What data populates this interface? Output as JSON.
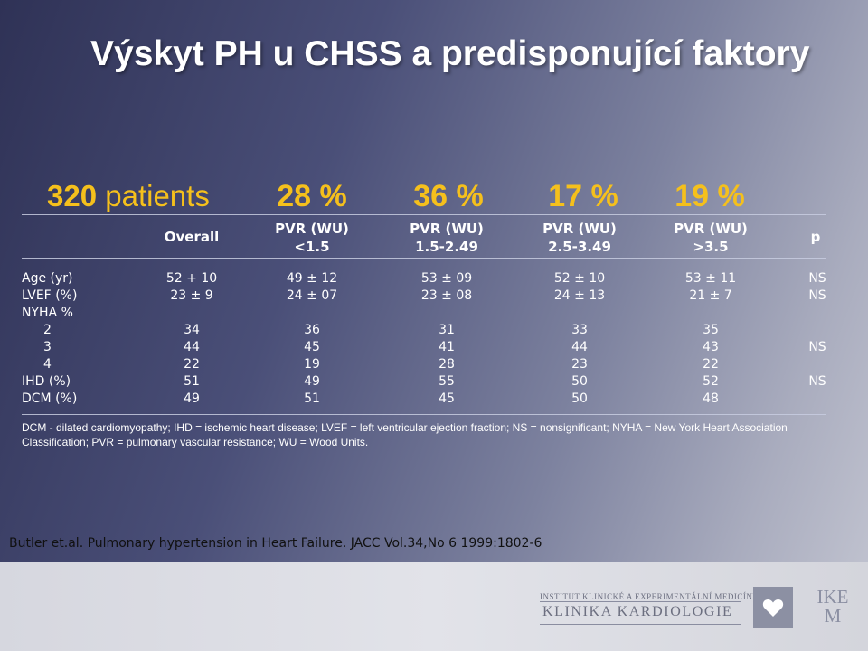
{
  "title": "Výskyt PH u CHSS a predisponující faktory",
  "patients": {
    "count": "320",
    "label": "patients"
  },
  "percentages": [
    "28 %",
    "36 %",
    "17 %",
    "19 %"
  ],
  "table": {
    "headers": {
      "overall": "Overall",
      "groups": [
        {
          "line1": "PVR (WU)",
          "line2": "<1.5"
        },
        {
          "line1": "PVR (WU)",
          "line2": "1.5-2.49"
        },
        {
          "line1": "PVR (WU)",
          "line2": "2.5-3.49"
        },
        {
          "line1": "PVR (WU)",
          "line2": ">3.5"
        }
      ],
      "p": "p"
    },
    "rows": [
      {
        "label": "Age (yr)",
        "indent": false,
        "values": [
          "52 + 10",
          "49 ± 12",
          "53 ± 09",
          "52 ± 10",
          "53 ± 11"
        ],
        "p": "NS"
      },
      {
        "label": "LVEF (%)",
        "indent": false,
        "values": [
          "23 ± 9",
          "24 ± 07",
          "23 ± 08",
          "24 ± 13",
          "21 ± 7"
        ],
        "p": "NS"
      },
      {
        "label": "NYHA %",
        "indent": false,
        "values": [
          "",
          "",
          "",
          "",
          ""
        ],
        "p": ""
      },
      {
        "label": "2",
        "indent": true,
        "values": [
          "34",
          "36",
          "31",
          "33",
          "35"
        ],
        "p": ""
      },
      {
        "label": "3",
        "indent": true,
        "values": [
          "44",
          "45",
          "41",
          "44",
          "43"
        ],
        "p": "NS"
      },
      {
        "label": "4",
        "indent": true,
        "values": [
          "22",
          "19",
          "28",
          "23",
          "22"
        ],
        "p": ""
      },
      {
        "label": "IHD (%)",
        "indent": false,
        "values": [
          "51",
          "49",
          "55",
          "50",
          "52"
        ],
        "p": "NS"
      },
      {
        "label": "DCM (%)",
        "indent": false,
        "values": [
          "49",
          "51",
          "45",
          "50",
          "48"
        ],
        "p": ""
      }
    ]
  },
  "footnote": "DCM - dilated cardiomyopathy; IHD = ischemic heart disease; LVEF = left ventricular ejection fraction; NS = nonsignificant; NYHA = New York Heart Association Classification; PVR = pulmonary vascular resistance; WU = Wood Units.",
  "reference": "Butler et.al. Pulmonary hypertension in Heart Failure. JACC Vol.34,No 6 1999:1802-6",
  "institution": {
    "line1": "INSTITUT KLINICKÉ A EXPERIMENTÁLNÍ MEDICÍNY",
    "line2": "KLINIKA KARDIOLOGIE",
    "logo_line1": "IKE",
    "logo_line2": "M",
    "logo_icon": "heart-icon"
  },
  "colors": {
    "accent": "#f5c01c",
    "text": "#ffffff",
    "logo": "#8c90a3"
  }
}
